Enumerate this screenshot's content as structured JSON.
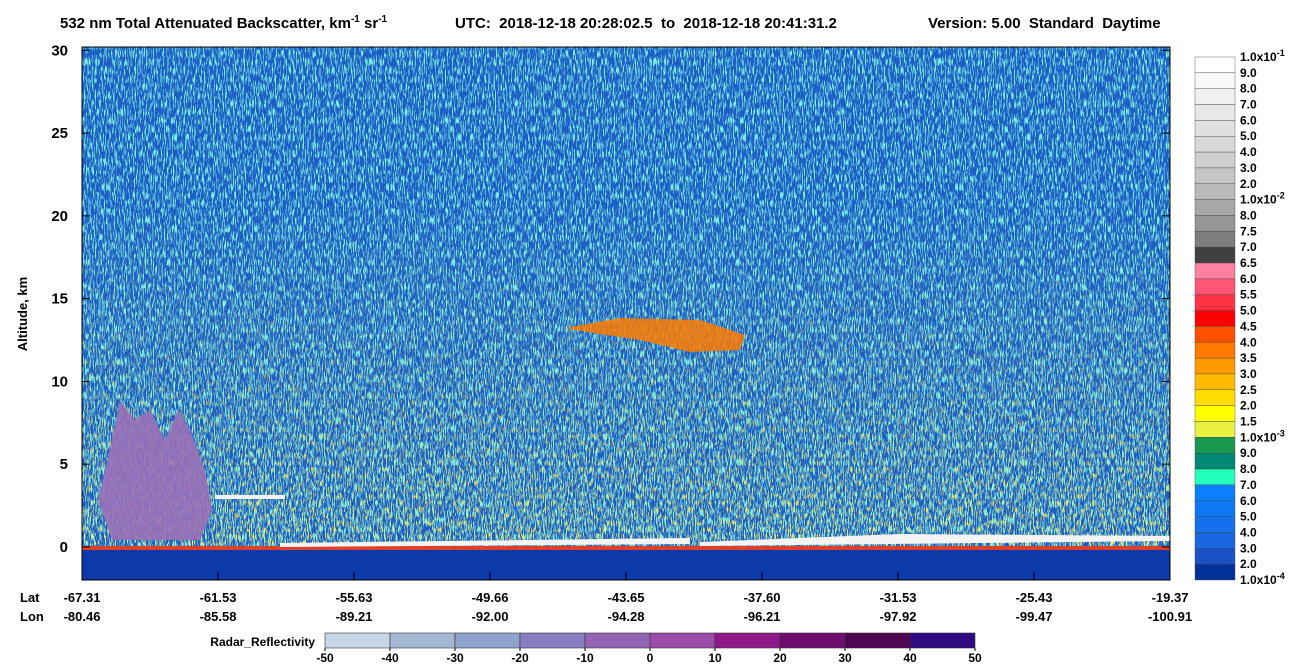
{
  "chart_data": {
    "type": "curtain",
    "title": {
      "text": "532 nm Total Attenuated Backscatter, km",
      "sup1": "-1",
      "mid": " sr",
      "sup2": "-1"
    },
    "utc": "UTC:  2018-12-18 20:28:02.5  to  2018-12-18 20:41:31.2",
    "version": "Version: 5.00  Standard  Daytime",
    "ylabel": "Altitude, km",
    "ylim": [
      -2,
      30.2
    ],
    "yticks": [
      0,
      5,
      10,
      15,
      20,
      25,
      30
    ],
    "x_row_labels": [
      "Lat",
      "Lon"
    ],
    "x_labels": [
      {
        "lat": "-67.31",
        "lon": "-80.46"
      },
      {
        "lat": "-61.53",
        "lon": "-85.58"
      },
      {
        "lat": "-55.63",
        "lon": "-89.21"
      },
      {
        "lat": "-49.66",
        "lon": "-92.00"
      },
      {
        "lat": "-43.65",
        "lon": "-94.28"
      },
      {
        "lat": "-37.60",
        "lon": "-96.21"
      },
      {
        "lat": "-31.53",
        "lon": "-97.92"
      },
      {
        "lat": "-25.43",
        "lon": "-99.47"
      },
      {
        "lat": "-19.37",
        "lon": "-100.91"
      }
    ],
    "colorbar": {
      "labels": [
        {
          "text": "1.0x10",
          "sup": "-1"
        },
        "9.0",
        "8.0",
        "7.0",
        "6.0",
        "5.0",
        "4.0",
        "3.0",
        "2.0",
        {
          "text": "1.0x10",
          "sup": "-2"
        },
        "8.0",
        "7.5",
        "7.0",
        "6.5",
        "6.0",
        "5.5",
        "5.0",
        "4.5",
        "4.0",
        "3.5",
        "3.0",
        "2.5",
        "2.0",
        "1.5",
        {
          "text": "1.0x10",
          "sup": "-3"
        },
        "9.0",
        "8.0",
        "7.0",
        "6.0",
        "5.0",
        "4.0",
        "3.0",
        "2.0",
        {
          "text": "1.0x10",
          "sup": "-4"
        }
      ],
      "colors": [
        "#ffffff",
        "#f8f8f8",
        "#f0f0f0",
        "#e8e8e8",
        "#e0e0e0",
        "#d8d8d8",
        "#cfcfcf",
        "#c5c5c5",
        "#bababa",
        "#a8a8a8",
        "#969696",
        "#7d7d7d",
        "#404040",
        "#ff80a0",
        "#ff5577",
        "#ff3344",
        "#ff0000",
        "#ff5000",
        "#ff7a00",
        "#ff9900",
        "#ffbb00",
        "#ffdd00",
        "#ffff00",
        "#e8f040",
        "#1a9850",
        "#008877",
        "#22ffbb",
        "#0a80ff",
        "#0d78f5",
        "#1570ee",
        "#1a66e0",
        "#1a50c8",
        "#00309a"
      ]
    },
    "radar_colorbar": {
      "title": "Radar_Reflectivity",
      "ticks": [
        -50,
        -40,
        -30,
        -20,
        -10,
        0,
        10,
        20,
        30,
        40,
        50
      ],
      "colors": [
        "#c6d6e6",
        "#a4b8d4",
        "#8fa3cc",
        "#8a7cc0",
        "#9464b4",
        "#9a4ca8",
        "#8e1a88",
        "#6e0e6e",
        "#4e0552",
        "#300a80"
      ]
    }
  }
}
